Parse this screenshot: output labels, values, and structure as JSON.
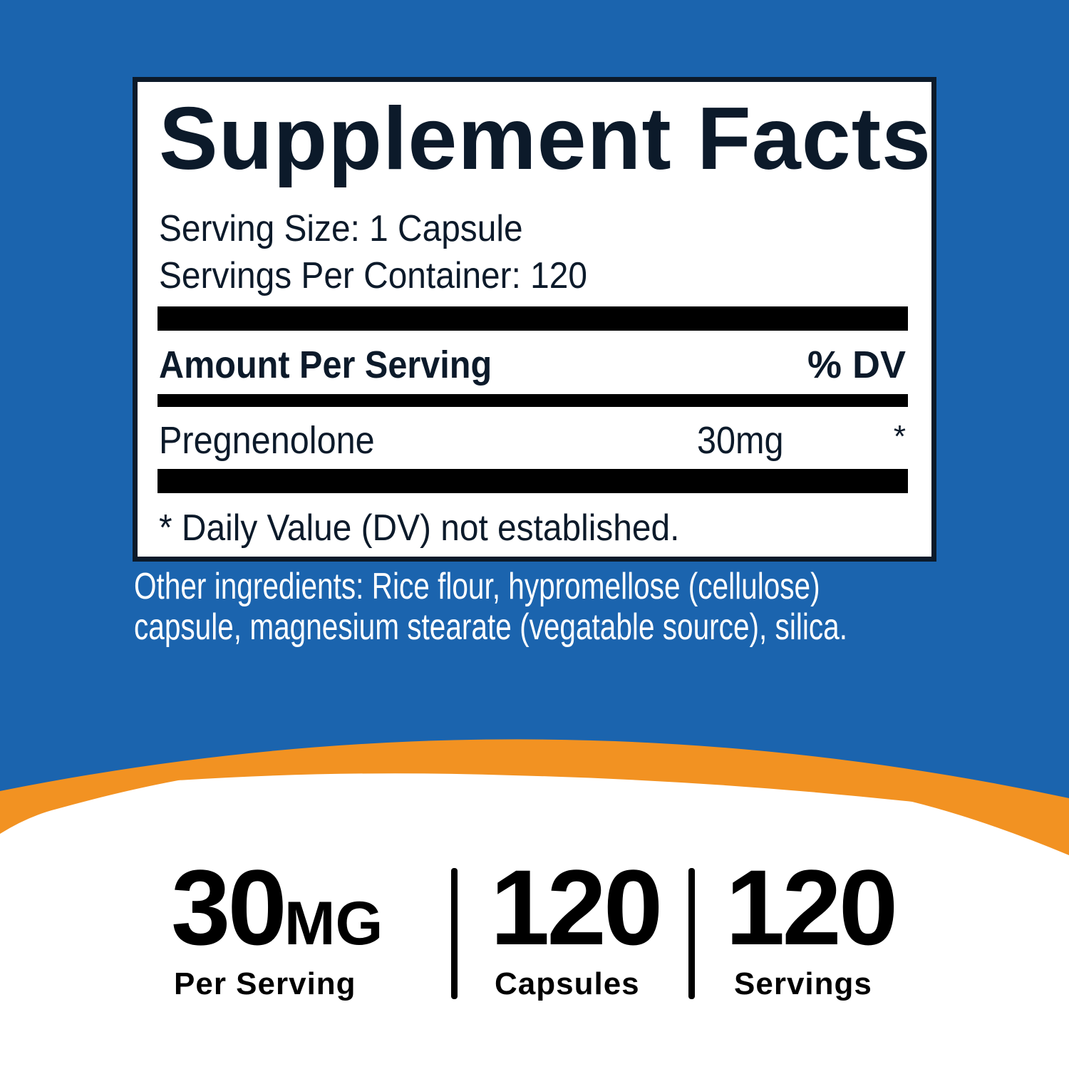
{
  "colors": {
    "background": "#1b64ae",
    "accent": "#f29222",
    "text": "#0c1a2a"
  },
  "panel": {
    "title": "Supplement Facts",
    "serving_size": "Serving Size: 1 Capsule",
    "servings_per_container": "Servings Per Container: 120",
    "header_amount": "Amount Per Serving",
    "header_dv": "% DV",
    "rows": [
      {
        "name": "Pregnenolone",
        "amount": "30mg",
        "dv": "*"
      }
    ],
    "footnote": "* Daily Value (DV) not established."
  },
  "other_ingredients": [
    "Other ingredients: Rice flour, hypromellose (cellulose)",
    "capsule, magnesium stearate (vegatable source), silica."
  ],
  "stats": [
    {
      "value": "30",
      "unit": "MG",
      "label": "Per Serving"
    },
    {
      "value": "120",
      "unit": "",
      "label": "Capsules"
    },
    {
      "value": "120",
      "unit": "",
      "label": "Servings"
    }
  ]
}
